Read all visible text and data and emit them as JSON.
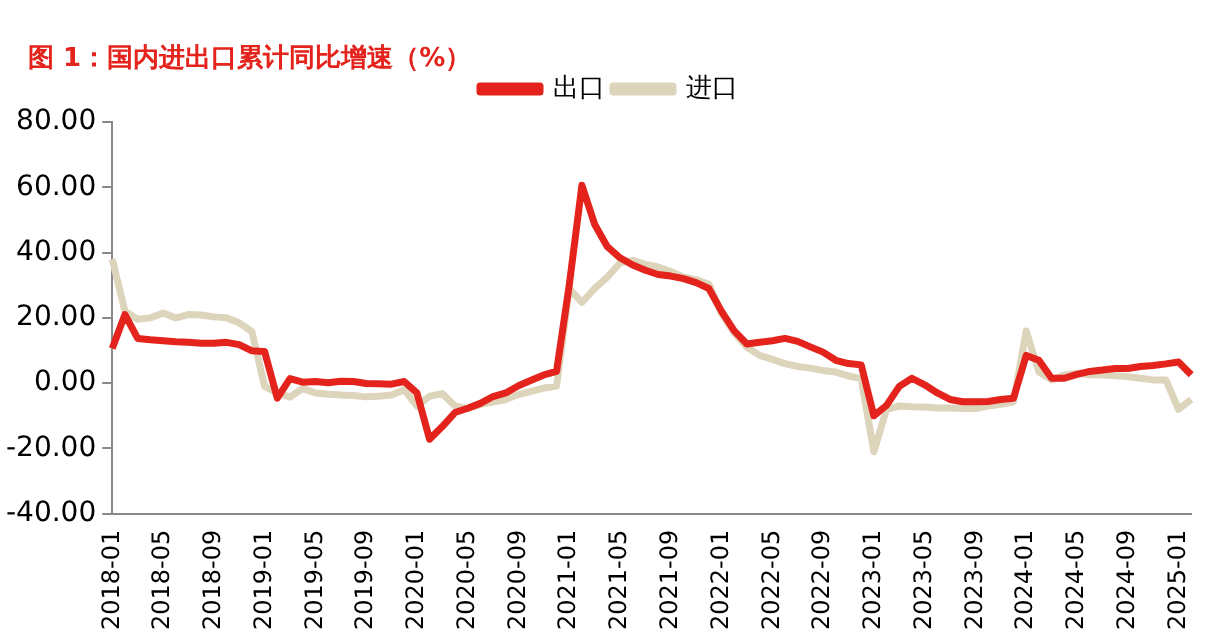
{
  "chart_data": {
    "type": "line",
    "title": "图 1：国内进出口累计同比增速（%）",
    "categories": [
      "2018-01",
      null,
      null,
      null,
      "2018-05",
      null,
      null,
      null,
      "2018-09",
      null,
      null,
      null,
      "2019-01",
      null,
      null,
      null,
      "2019-05",
      null,
      null,
      null,
      "2019-09",
      null,
      null,
      null,
      "2020-01",
      null,
      null,
      null,
      "2020-05",
      null,
      null,
      null,
      "2020-09",
      null,
      null,
      null,
      "2021-01",
      null,
      null,
      null,
      "2021-05",
      null,
      null,
      null,
      "2021-09",
      null,
      null,
      null,
      "2022-01",
      null,
      null,
      null,
      "2022-05",
      null,
      null,
      null,
      "2022-09",
      null,
      null,
      null,
      "2023-01",
      null,
      null,
      null,
      "2023-05",
      null,
      null,
      null,
      "2023-09",
      null,
      null,
      null,
      "2024-01",
      null,
      null,
      null,
      "2024-05",
      null,
      null,
      null,
      "2024-09",
      null,
      null,
      null,
      "2025-01",
      null
    ],
    "series": [
      {
        "name": "出口",
        "color": "#e3231c",
        "values": [
          10.6,
          21,
          13.7,
          13.3,
          13,
          12.7,
          12.5,
          12.2,
          12.2,
          12.5,
          11.8,
          9.9,
          9.7,
          -4.6,
          1.4,
          0.3,
          0.5,
          0.1,
          0.6,
          0.5,
          -0.1,
          -0.2,
          -0.3,
          0.5,
          -3,
          -17.2,
          -13.3,
          -9,
          -7.7,
          -6.2,
          -4.1,
          -3,
          -0.8,
          0.9,
          2.5,
          3.6,
          30,
          60.6,
          48.7,
          41.8,
          38.4,
          36.2,
          34.6,
          33.3,
          32.8,
          32,
          30.8,
          29,
          22,
          16,
          12,
          12.5,
          13,
          13.7,
          12.8,
          11.1,
          9.5,
          7,
          6,
          5.6,
          -10,
          -6.8,
          -1,
          1.5,
          -0.5,
          -3,
          -5,
          -5.7,
          -5.7,
          -5.6,
          -5,
          -4.6,
          8.5,
          7,
          1.5,
          1.5,
          2.7,
          3.6,
          4,
          4.5,
          4.5,
          5.1,
          5.4,
          5.9,
          6.5,
          2.6
        ]
      },
      {
        "name": "进口",
        "color": "#ddd4bc",
        "values": [
          38,
          22,
          19.6,
          20,
          21.5,
          20,
          21,
          20.9,
          20.3,
          20,
          18.5,
          15.8,
          -1,
          -3,
          -4.3,
          -1.6,
          -3,
          -3.4,
          -3.6,
          -3.8,
          -4.2,
          -4,
          -3.6,
          -2,
          -7,
          -4,
          -3.2,
          -7,
          -7.8,
          -6.5,
          -5.8,
          -5,
          -3.5,
          -2.5,
          -1.5,
          -0.9,
          29,
          24.7,
          29,
          32.5,
          36.8,
          37.6,
          36.4,
          35.6,
          34.2,
          32.5,
          31.7,
          30.3,
          21.4,
          15.4,
          11,
          8.5,
          7.3,
          6,
          5.1,
          4.6,
          3.9,
          3.4,
          2.2,
          1.4,
          -21,
          -8,
          -7,
          -7.2,
          -7.3,
          -7.6,
          -7.6,
          -7.8,
          -7.8,
          -7,
          -6.5,
          -5.7,
          16,
          3.4,
          1,
          2.5,
          3,
          2.6,
          2.5,
          2.3,
          2,
          1.5,
          1,
          1,
          -8,
          -5
        ]
      }
    ],
    "ylim": [
      -40,
      80
    ],
    "yticks": [
      {
        "value": -40,
        "label": "-40.00"
      },
      {
        "value": -20,
        "label": "-20.00"
      },
      {
        "value": 0,
        "label": "0.00"
      },
      {
        "value": 20,
        "label": "20.00"
      },
      {
        "value": 40,
        "label": "40.00"
      },
      {
        "value": 60,
        "label": "60.00"
      },
      {
        "value": 80,
        "label": "80.00"
      }
    ],
    "legend": "top",
    "grid": false,
    "marker": "none",
    "line_style": "solid"
  }
}
